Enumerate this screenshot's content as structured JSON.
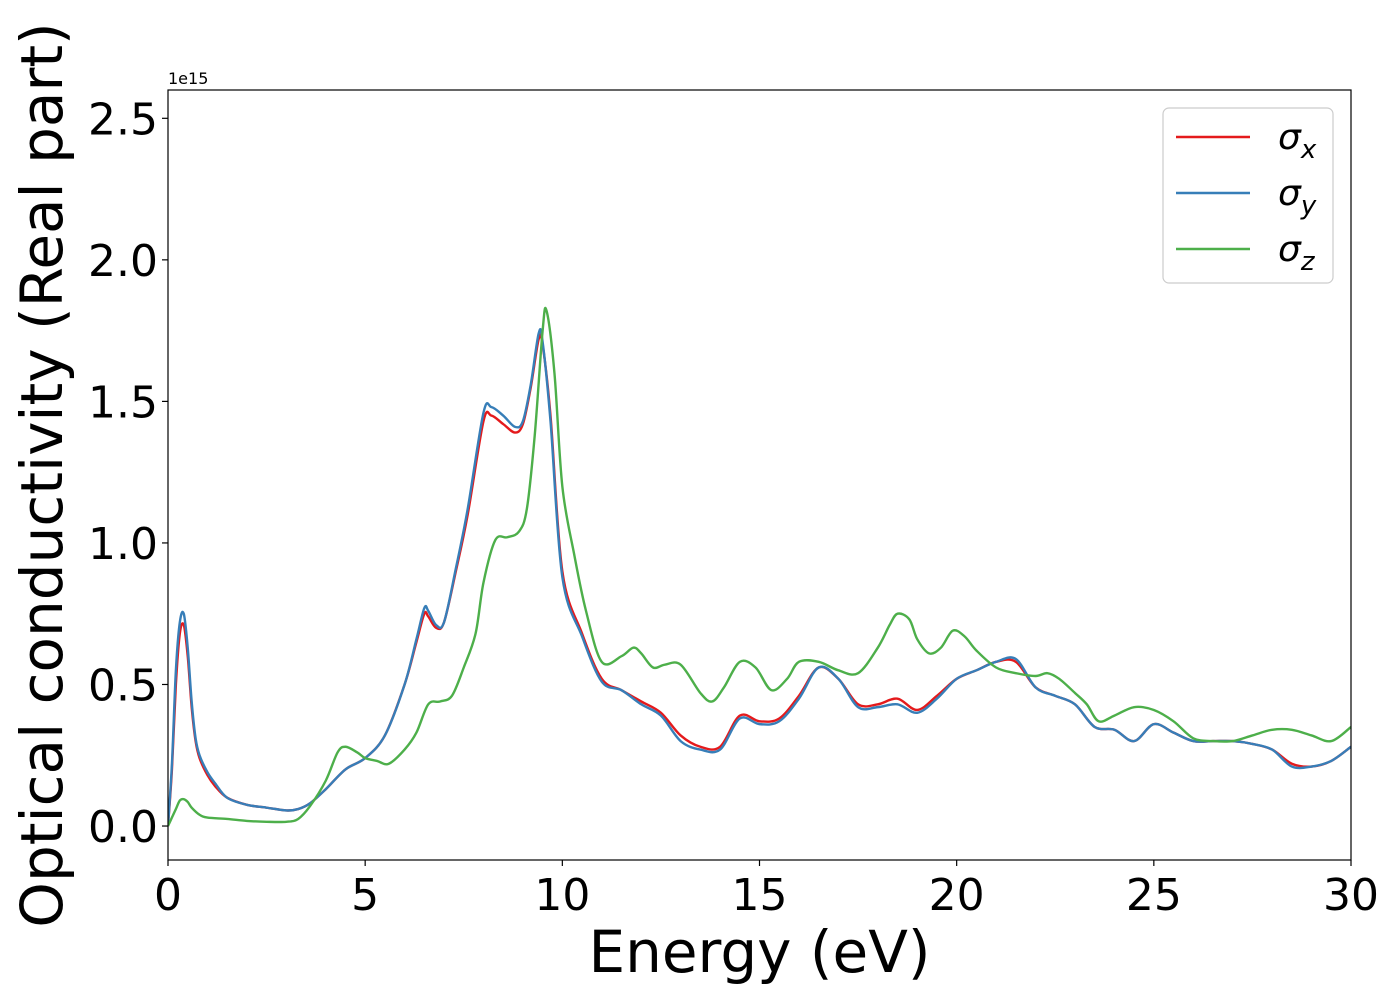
{
  "chart_data": {
    "type": "line",
    "title": "",
    "xlabel": "Energy (eV)",
    "ylabel": "Optical conductivity (Real part)",
    "y_offset_label": "1e15",
    "xlim": [
      0,
      30
    ],
    "ylim": [
      -0.12,
      2.6
    ],
    "xticks": [
      0,
      5,
      10,
      15,
      20,
      25,
      30
    ],
    "xtick_labels": [
      "0",
      "5",
      "10",
      "15",
      "20",
      "25",
      "30"
    ],
    "yticks": [
      0.0,
      0.5,
      1.0,
      1.5,
      2.0,
      2.5
    ],
    "ytick_labels": [
      "0.0",
      "0.5",
      "1.0",
      "1.5",
      "2.0",
      "2.5"
    ],
    "grid": false,
    "legend_position": "top-right",
    "series": [
      {
        "name": "σx",
        "symbol": "σ",
        "subscript": "x",
        "color": "#e41a1c",
        "x": [
          0,
          0.1,
          0.2,
          0.3,
          0.4,
          0.5,
          0.6,
          0.7,
          0.8,
          1.0,
          1.2,
          1.5,
          2.0,
          2.5,
          3.0,
          3.3,
          3.6,
          4.0,
          4.5,
          5.0,
          5.5,
          6.0,
          6.3,
          6.5,
          6.6,
          6.8,
          7.0,
          7.3,
          7.6,
          8.0,
          8.2,
          8.5,
          8.8,
          9.0,
          9.2,
          9.4,
          9.5,
          9.7,
          10.0,
          10.5,
          11.0,
          11.5,
          12.0,
          12.5,
          13.0,
          13.5,
          14.0,
          14.5,
          15.0,
          15.5,
          16.0,
          16.5,
          17.0,
          17.5,
          18.0,
          18.5,
          19.0,
          19.5,
          20.0,
          20.5,
          21.0,
          21.5,
          22.0,
          22.5,
          23.0,
          23.5,
          24.0,
          24.5,
          25.0,
          25.5,
          26.0,
          26.5,
          27.0,
          27.5,
          28.0,
          28.5,
          29.0,
          29.5,
          30.0
        ],
        "values": [
          0.0,
          0.2,
          0.5,
          0.68,
          0.71,
          0.6,
          0.42,
          0.3,
          0.24,
          0.18,
          0.14,
          0.1,
          0.075,
          0.065,
          0.055,
          0.06,
          0.08,
          0.13,
          0.2,
          0.24,
          0.32,
          0.5,
          0.65,
          0.75,
          0.74,
          0.7,
          0.72,
          0.9,
          1.1,
          1.43,
          1.45,
          1.42,
          1.39,
          1.42,
          1.55,
          1.72,
          1.7,
          1.45,
          0.9,
          0.68,
          0.52,
          0.48,
          0.44,
          0.4,
          0.32,
          0.28,
          0.28,
          0.39,
          0.37,
          0.38,
          0.46,
          0.56,
          0.52,
          0.43,
          0.43,
          0.45,
          0.41,
          0.46,
          0.52,
          0.55,
          0.58,
          0.58,
          0.49,
          0.46,
          0.43,
          0.35,
          0.34,
          0.3,
          0.36,
          0.33,
          0.3,
          0.3,
          0.3,
          0.29,
          0.27,
          0.22,
          0.21,
          0.23,
          0.28
        ]
      },
      {
        "name": "σy",
        "symbol": "σ",
        "subscript": "y",
        "color": "#377eb8",
        "x": [
          0,
          0.1,
          0.2,
          0.3,
          0.4,
          0.5,
          0.6,
          0.7,
          0.8,
          1.0,
          1.2,
          1.5,
          2.0,
          2.5,
          3.0,
          3.3,
          3.6,
          4.0,
          4.5,
          5.0,
          5.5,
          6.0,
          6.3,
          6.5,
          6.6,
          6.8,
          7.0,
          7.3,
          7.6,
          8.0,
          8.2,
          8.5,
          8.8,
          9.0,
          9.2,
          9.4,
          9.5,
          9.7,
          10.0,
          10.5,
          11.0,
          11.5,
          12.0,
          12.5,
          13.0,
          13.5,
          14.0,
          14.5,
          15.0,
          15.5,
          16.0,
          16.5,
          17.0,
          17.5,
          18.0,
          18.5,
          19.0,
          19.5,
          20.0,
          20.5,
          21.0,
          21.5,
          22.0,
          22.5,
          23.0,
          23.5,
          24.0,
          24.5,
          25.0,
          25.5,
          26.0,
          26.5,
          27.0,
          27.5,
          28.0,
          28.5,
          29.0,
          29.5,
          30.0
        ],
        "values": [
          0.0,
          0.22,
          0.55,
          0.72,
          0.75,
          0.63,
          0.44,
          0.31,
          0.25,
          0.19,
          0.15,
          0.1,
          0.075,
          0.065,
          0.055,
          0.06,
          0.08,
          0.13,
          0.2,
          0.24,
          0.32,
          0.5,
          0.66,
          0.77,
          0.76,
          0.71,
          0.72,
          0.91,
          1.12,
          1.46,
          1.48,
          1.45,
          1.41,
          1.43,
          1.56,
          1.74,
          1.71,
          1.43,
          0.88,
          0.67,
          0.51,
          0.48,
          0.43,
          0.39,
          0.3,
          0.27,
          0.27,
          0.38,
          0.36,
          0.37,
          0.45,
          0.56,
          0.52,
          0.42,
          0.42,
          0.43,
          0.4,
          0.45,
          0.52,
          0.55,
          0.58,
          0.59,
          0.49,
          0.46,
          0.43,
          0.35,
          0.34,
          0.3,
          0.36,
          0.33,
          0.3,
          0.3,
          0.3,
          0.29,
          0.27,
          0.21,
          0.21,
          0.23,
          0.28
        ]
      },
      {
        "name": "σz",
        "symbol": "σ",
        "subscript": "z",
        "color": "#4daf4a",
        "x": [
          0,
          0.1,
          0.2,
          0.3,
          0.4,
          0.5,
          0.6,
          0.8,
          1.0,
          1.5,
          2.0,
          2.5,
          3.0,
          3.3,
          3.6,
          4.0,
          4.3,
          4.5,
          4.8,
          5.0,
          5.3,
          5.6,
          6.0,
          6.3,
          6.6,
          6.9,
          7.2,
          7.5,
          7.8,
          8.0,
          8.3,
          8.6,
          8.9,
          9.1,
          9.3,
          9.5,
          9.6,
          9.8,
          10.0,
          10.3,
          10.6,
          11.0,
          11.5,
          11.8,
          12.0,
          12.3,
          12.6,
          13.0,
          13.5,
          13.8,
          14.1,
          14.5,
          14.9,
          15.3,
          15.7,
          16.0,
          16.5,
          17.0,
          17.5,
          18.0,
          18.3,
          18.5,
          18.8,
          19.0,
          19.3,
          19.6,
          19.9,
          20.2,
          20.5,
          21.0,
          21.5,
          22.0,
          22.3,
          22.6,
          23.0,
          23.3,
          23.6,
          24.0,
          24.5,
          25.0,
          25.5,
          26.0,
          26.5,
          27.0,
          27.5,
          28.0,
          28.5,
          29.0,
          29.5,
          30.0
        ],
        "values": [
          0.0,
          0.03,
          0.06,
          0.09,
          0.095,
          0.085,
          0.065,
          0.04,
          0.03,
          0.025,
          0.018,
          0.015,
          0.015,
          0.025,
          0.07,
          0.16,
          0.26,
          0.28,
          0.26,
          0.24,
          0.23,
          0.22,
          0.27,
          0.33,
          0.43,
          0.44,
          0.46,
          0.56,
          0.68,
          0.86,
          1.01,
          1.02,
          1.04,
          1.12,
          1.38,
          1.75,
          1.82,
          1.6,
          1.2,
          0.96,
          0.76,
          0.58,
          0.6,
          0.63,
          0.61,
          0.56,
          0.57,
          0.57,
          0.47,
          0.44,
          0.49,
          0.58,
          0.56,
          0.48,
          0.52,
          0.58,
          0.58,
          0.55,
          0.54,
          0.63,
          0.71,
          0.75,
          0.73,
          0.66,
          0.61,
          0.63,
          0.69,
          0.67,
          0.62,
          0.56,
          0.54,
          0.53,
          0.54,
          0.52,
          0.47,
          0.43,
          0.37,
          0.39,
          0.42,
          0.41,
          0.37,
          0.31,
          0.3,
          0.3,
          0.32,
          0.34,
          0.34,
          0.32,
          0.3,
          0.35
        ]
      }
    ]
  }
}
